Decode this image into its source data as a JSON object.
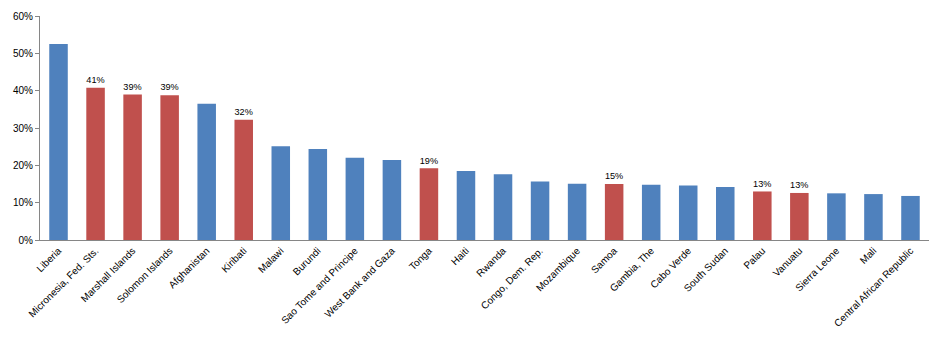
{
  "chart_data": {
    "type": "bar",
    "categories": [
      "Liberia",
      "Micronesia, Fed. Sts.",
      "Marshall Islands",
      "Solomon Islands",
      "Afghanistan",
      "Kiribati",
      "Malawi",
      "Burundi",
      "Sao Tome and Principe",
      "West Bank and Gaza",
      "Tonga",
      "Haiti",
      "Rwanda",
      "Congo, Dem. Rep.",
      "Mozambique",
      "Samoa",
      "Gambia, The",
      "Cabo Verde",
      "South Sudan",
      "Palau",
      "Vanuatu",
      "Sierra Leone",
      "Mali",
      "Central African Republic"
    ],
    "values": [
      52.5,
      40.8,
      39.0,
      38.8,
      36.5,
      32.2,
      25.1,
      24.4,
      22.0,
      21.4,
      19.2,
      18.5,
      17.6,
      15.7,
      15.1,
      15.0,
      14.8,
      14.6,
      14.2,
      13.0,
      12.6,
      12.5,
      12.3,
      11.8
    ],
    "value_labels": [
      null,
      "41%",
      "39%",
      "39%",
      null,
      "32%",
      null,
      null,
      null,
      null,
      "19%",
      null,
      null,
      null,
      null,
      "15%",
      null,
      null,
      null,
      "13%",
      "13%",
      null,
      null,
      null
    ],
    "colors": [
      "#4F81BD",
      "#C0504D",
      "#C0504D",
      "#C0504D",
      "#4F81BD",
      "#C0504D",
      "#4F81BD",
      "#4F81BD",
      "#4F81BD",
      "#4F81BD",
      "#C0504D",
      "#4F81BD",
      "#4F81BD",
      "#4F81BD",
      "#4F81BD",
      "#C0504D",
      "#4F81BD",
      "#4F81BD",
      "#4F81BD",
      "#C0504D",
      "#C0504D",
      "#4F81BD",
      "#4F81BD",
      "#4F81BD"
    ],
    "ylim": [
      0,
      60
    ],
    "yticks": [
      {
        "value": 0,
        "label": "0%"
      },
      {
        "value": 10,
        "label": "10%"
      },
      {
        "value": 20,
        "label": "20%"
      },
      {
        "value": 30,
        "label": "30%"
      },
      {
        "value": 40,
        "label": "40%"
      },
      {
        "value": 50,
        "label": "50%"
      },
      {
        "value": 60,
        "label": "60%"
      }
    ],
    "grid": false,
    "data_labels": true
  }
}
